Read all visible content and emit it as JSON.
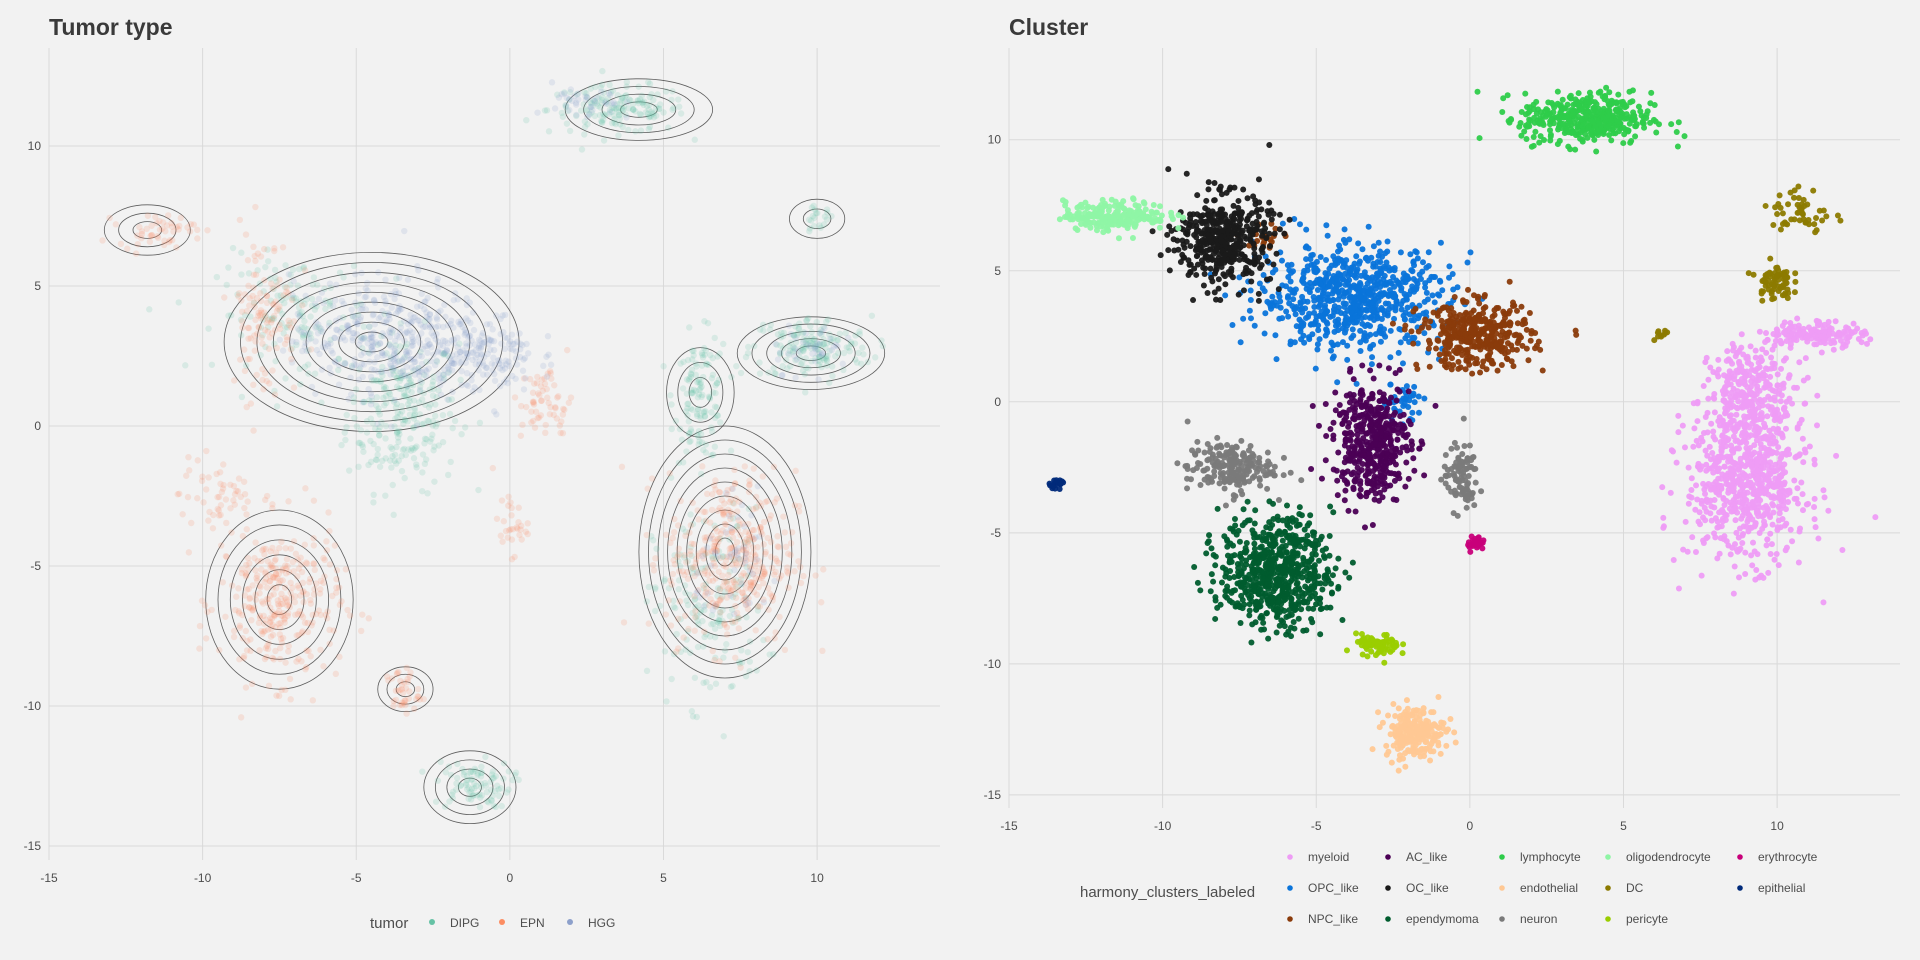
{
  "chart_data": [
    {
      "type": "scatter",
      "title": "Tumor type",
      "xlabel": "",
      "ylabel": "",
      "xlim": [
        -15,
        14
      ],
      "ylim": [
        -15.5,
        13.5
      ],
      "xticks": [
        -15,
        -10,
        -5,
        0,
        5,
        10
      ],
      "yticks": [
        -15,
        -10,
        -5,
        0,
        5,
        10
      ],
      "grid": true,
      "contours": true,
      "legend": {
        "title": "tumor",
        "position": "bottom",
        "entries": [
          {
            "name": "DIPG",
            "color": "#66c2a5"
          },
          {
            "name": "EPN",
            "color": "#fc8d62"
          },
          {
            "name": "HGG",
            "color": "#8da0cb"
          }
        ]
      },
      "series": [
        {
          "name": "DIPG",
          "color": "#66c2a5",
          "blobs": [
            {
              "x": -3.5,
              "y": 0.5,
              "sx": 1.3,
              "sy": 2.0,
              "n": 260
            },
            {
              "x": 3.5,
              "y": 11.3,
              "sx": 1.6,
              "sy": 0.6,
              "n": 160
            },
            {
              "x": 6.2,
              "y": 1.0,
              "sx": 0.6,
              "sy": 1.6,
              "n": 130
            },
            {
              "x": 9.8,
              "y": 2.8,
              "sx": 1.4,
              "sy": 0.8,
              "n": 160
            },
            {
              "x": -1.2,
              "y": -12.8,
              "sx": 0.9,
              "sy": 0.6,
              "n": 90
            },
            {
              "x": 6.5,
              "y": -6.5,
              "sx": 1.3,
              "sy": 2.5,
              "n": 160
            },
            {
              "x": -7.0,
              "y": 4.0,
              "sx": 1.8,
              "sy": 1.5,
              "n": 140
            },
            {
              "x": 10.0,
              "y": 7.4,
              "sx": 0.4,
              "sy": 0.3,
              "n": 20
            }
          ]
        },
        {
          "name": "EPN",
          "color": "#fc8d62",
          "blobs": [
            {
              "x": -7.5,
              "y": -6.3,
              "sx": 1.4,
              "sy": 2.0,
              "n": 320
            },
            {
              "x": 7.2,
              "y": -4.7,
              "sx": 1.5,
              "sy": 2.2,
              "n": 380
            },
            {
              "x": -8.0,
              "y": 4.0,
              "sx": 0.8,
              "sy": 2.2,
              "n": 120
            },
            {
              "x": -11.5,
              "y": 7.0,
              "sx": 0.9,
              "sy": 0.4,
              "n": 50
            },
            {
              "x": 1.2,
              "y": 0.8,
              "sx": 0.6,
              "sy": 1.0,
              "n": 60
            },
            {
              "x": -3.5,
              "y": -9.5,
              "sx": 0.4,
              "sy": 0.6,
              "n": 40
            },
            {
              "x": 0.0,
              "y": -3.5,
              "sx": 0.4,
              "sy": 0.8,
              "n": 30
            },
            {
              "x": -9.5,
              "y": -2.5,
              "sx": 0.9,
              "sy": 1.0,
              "n": 50
            }
          ]
        },
        {
          "name": "HGG",
          "color": "#8da0cb",
          "blobs": [
            {
              "x": -4.0,
              "y": 3.2,
              "sx": 2.2,
              "sy": 1.5,
              "n": 380
            },
            {
              "x": -1.0,
              "y": 2.6,
              "sx": 1.3,
              "sy": 1.0,
              "n": 160
            },
            {
              "x": 2.5,
              "y": 11.5,
              "sx": 0.8,
              "sy": 0.5,
              "n": 40
            },
            {
              "x": 9.8,
              "y": 2.8,
              "sx": 1.0,
              "sy": 0.6,
              "n": 40
            },
            {
              "x": 7.5,
              "y": -5.0,
              "sx": 1.0,
              "sy": 1.5,
              "n": 50
            }
          ]
        }
      ]
    },
    {
      "type": "scatter",
      "title": "Cluster",
      "xlabel": "",
      "ylabel": "",
      "xlim": [
        -15,
        14
      ],
      "ylim": [
        -15.5,
        13.5
      ],
      "xticks": [
        -15,
        -10,
        -5,
        0,
        5,
        10
      ],
      "yticks": [
        -15,
        -10,
        -5,
        0,
        5,
        10
      ],
      "grid": true,
      "legend": {
        "title": "harmony_clusters_labeled",
        "position": "bottom",
        "entries": [
          {
            "name": "myeloid",
            "color": "#ee9cf5"
          },
          {
            "name": "OPC_like",
            "color": "#0a74da"
          },
          {
            "name": "NPC_like",
            "color": "#8a3b0b"
          },
          {
            "name": "AC_like",
            "color": "#4b0055"
          },
          {
            "name": "OC_like",
            "color": "#1a1a1a"
          },
          {
            "name": "ependymoma",
            "color": "#005c2e"
          },
          {
            "name": "lymphocyte",
            "color": "#2ecc4a"
          },
          {
            "name": "endothelial",
            "color": "#ffc894"
          },
          {
            "name": "neuron",
            "color": "#7a7a7a"
          },
          {
            "name": "oligodendrocyte",
            "color": "#8ff5a5"
          },
          {
            "name": "DC",
            "color": "#8c7a00"
          },
          {
            "name": "pericyte",
            "color": "#9acd00"
          },
          {
            "name": "erythrocyte",
            "color": "#c8007a"
          },
          {
            "name": "epithelial",
            "color": "#002a7a"
          }
        ]
      },
      "series": [
        {
          "name": "myeloid",
          "color": "#ee9cf5",
          "blobs": [
            {
              "x": 9.0,
              "y": -3.0,
              "sx": 1.4,
              "sy": 2.2,
              "n": 700
            },
            {
              "x": 9.2,
              "y": 0.5,
              "sx": 1.0,
              "sy": 1.2,
              "n": 250
            },
            {
              "x": 11.3,
              "y": 2.6,
              "sx": 1.1,
              "sy": 0.35,
              "n": 150
            }
          ]
        },
        {
          "name": "OPC_like",
          "color": "#0a74da",
          "blobs": [
            {
              "x": -3.8,
              "y": 4.0,
              "sx": 2.2,
              "sy": 1.4,
              "n": 700
            },
            {
              "x": -2.2,
              "y": 0.0,
              "sx": 0.5,
              "sy": 0.5,
              "n": 40
            }
          ]
        },
        {
          "name": "NPC_like",
          "color": "#8a3b0b",
          "blobs": [
            {
              "x": 0.2,
              "y": 2.5,
              "sx": 1.3,
              "sy": 0.9,
              "n": 380
            },
            {
              "x": -6.5,
              "y": 6.3,
              "sx": 0.5,
              "sy": 0.4,
              "n": 20
            }
          ]
        },
        {
          "name": "AC_like",
          "color": "#4b0055",
          "blobs": [
            {
              "x": -3.2,
              "y": -1.5,
              "sx": 0.9,
              "sy": 1.6,
              "n": 450
            }
          ]
        },
        {
          "name": "OC_like",
          "color": "#1a1a1a",
          "blobs": [
            {
              "x": -8.0,
              "y": 6.2,
              "sx": 1.1,
              "sy": 1.2,
              "n": 450
            }
          ]
        },
        {
          "name": "ependymoma",
          "color": "#005c2e",
          "blobs": [
            {
              "x": -6.3,
              "y": -6.5,
              "sx": 1.3,
              "sy": 1.5,
              "n": 650
            }
          ]
        },
        {
          "name": "lymphocyte",
          "color": "#2ecc4a",
          "blobs": [
            {
              "x": 3.8,
              "y": 10.8,
              "sx": 1.5,
              "sy": 0.7,
              "n": 420
            }
          ]
        },
        {
          "name": "endothelial",
          "color": "#ffc894",
          "blobs": [
            {
              "x": -1.8,
              "y": -12.6,
              "sx": 0.7,
              "sy": 0.7,
              "n": 220
            }
          ]
        },
        {
          "name": "neuron",
          "color": "#7a7a7a",
          "blobs": [
            {
              "x": -7.8,
              "y": -2.5,
              "sx": 1.0,
              "sy": 0.7,
              "n": 200
            },
            {
              "x": -0.3,
              "y": -2.9,
              "sx": 0.4,
              "sy": 0.9,
              "n": 90
            }
          ]
        },
        {
          "name": "oligodendrocyte",
          "color": "#8ff5a5",
          "blobs": [
            {
              "x": -11.5,
              "y": 7.1,
              "sx": 1.2,
              "sy": 0.4,
              "n": 220
            }
          ]
        },
        {
          "name": "DC",
          "color": "#8c7a00",
          "blobs": [
            {
              "x": 9.9,
              "y": 4.6,
              "sx": 0.4,
              "sy": 0.5,
              "n": 70
            },
            {
              "x": 10.8,
              "y": 7.2,
              "sx": 0.7,
              "sy": 0.7,
              "n": 50
            },
            {
              "x": 6.2,
              "y": 2.6,
              "sx": 0.25,
              "sy": 0.15,
              "n": 10
            }
          ]
        },
        {
          "name": "pericyte",
          "color": "#9acd00",
          "blobs": [
            {
              "x": -3.0,
              "y": -9.3,
              "sx": 0.5,
              "sy": 0.3,
              "n": 70
            }
          ]
        },
        {
          "name": "erythrocyte",
          "color": "#c8007a",
          "blobs": [
            {
              "x": 0.2,
              "y": -5.4,
              "sx": 0.2,
              "sy": 0.2,
              "n": 30
            }
          ]
        },
        {
          "name": "epithelial",
          "color": "#002a7a",
          "blobs": [
            {
              "x": -13.4,
              "y": -3.1,
              "sx": 0.2,
              "sy": 0.12,
              "n": 18
            }
          ]
        }
      ]
    }
  ]
}
